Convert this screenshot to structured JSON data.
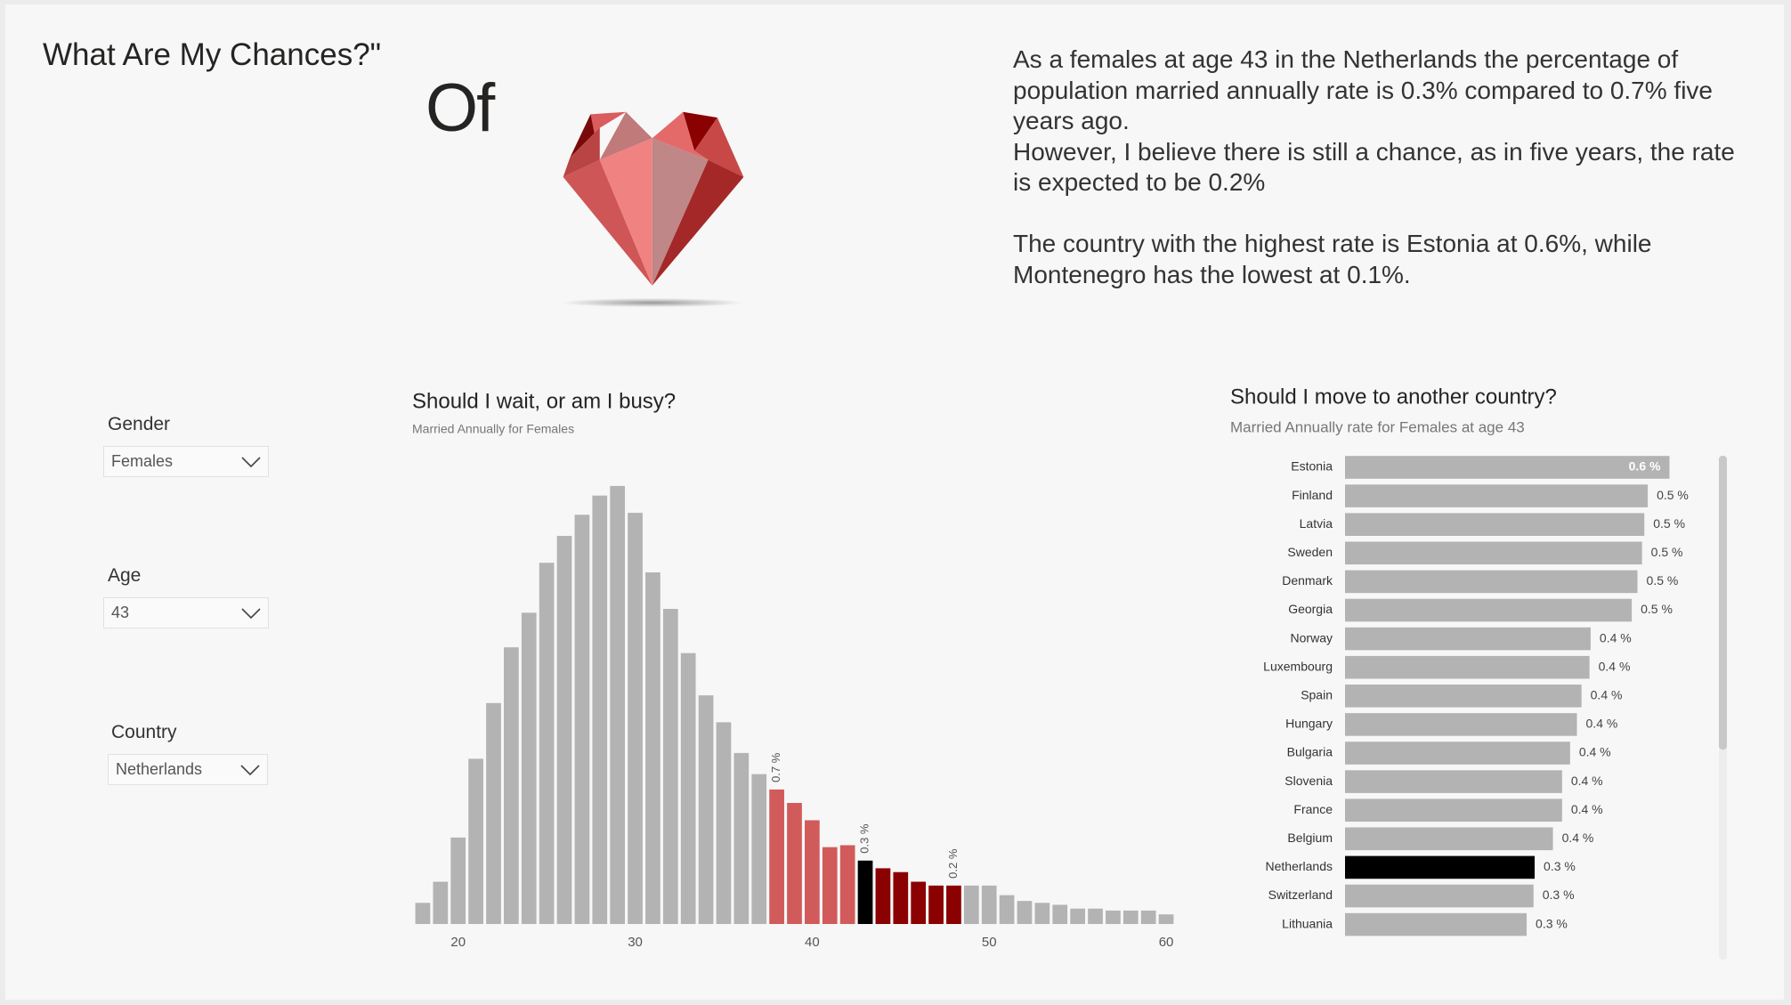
{
  "header": {
    "title": "What Are My Chances?\"",
    "of": "Of"
  },
  "summary": {
    "paragraphs": [
      "As a females at age 43 in the Netherlands the percentage of population married annually rate is 0.3% compared to 0.7% five years ago.",
      "However, I believe there is still a chance, as in five years, the rate is expected to be 0.2%",
      "The country with the highest rate is Estonia at 0.6%, while Montenegro has the lowest at 0.1%."
    ]
  },
  "filters": [
    {
      "label": "Gender",
      "value": "Females"
    },
    {
      "label": "Age",
      "value": "43"
    },
    {
      "label": "Country",
      "value": "Netherlands"
    }
  ],
  "chart_data": [
    {
      "type": "bar",
      "title": "Should I wait, or am I busy?",
      "subtitle": "Married Annually for Females",
      "x": [
        18,
        19,
        20,
        21,
        22,
        23,
        24,
        25,
        26,
        27,
        28,
        29,
        30,
        31,
        32,
        33,
        34,
        35,
        36,
        37,
        38,
        39,
        40,
        41,
        42,
        43,
        44,
        45,
        46,
        47,
        48,
        49,
        50,
        51,
        52,
        53,
        54,
        55,
        56,
        57,
        58,
        59,
        60
      ],
      "values": [
        0.11,
        0.22,
        0.45,
        0.86,
        1.15,
        1.44,
        1.62,
        1.88,
        2.02,
        2.13,
        2.23,
        2.28,
        2.14,
        1.83,
        1.64,
        1.41,
        1.19,
        1.05,
        0.89,
        0.78,
        0.7,
        0.63,
        0.54,
        0.4,
        0.41,
        0.33,
        0.29,
        0.27,
        0.22,
        0.2,
        0.2,
        0.2,
        0.2,
        0.15,
        0.12,
        0.11,
        0.1,
        0.08,
        0.08,
        0.07,
        0.07,
        0.07,
        0.05
      ],
      "value_labels": [
        null,
        null,
        null,
        null,
        null,
        null,
        null,
        null,
        null,
        null,
        null,
        null,
        null,
        null,
        null,
        null,
        null,
        null,
        null,
        null,
        "0.7 %",
        null,
        null,
        null,
        null,
        "0.3 %",
        null,
        null,
        null,
        null,
        "0.2 %",
        null,
        null,
        null,
        null,
        null,
        null,
        null,
        null,
        null,
        null,
        null,
        null
      ],
      "colors": [
        "#b3b3b3",
        "#b3b3b3",
        "#b3b3b3",
        "#b3b3b3",
        "#b3b3b3",
        "#b3b3b3",
        "#b3b3b3",
        "#b3b3b3",
        "#b3b3b3",
        "#b3b3b3",
        "#b3b3b3",
        "#b3b3b3",
        "#b3b3b3",
        "#b3b3b3",
        "#b3b3b3",
        "#b3b3b3",
        "#b3b3b3",
        "#b3b3b3",
        "#b3b3b3",
        "#b3b3b3",
        "#d15b5b",
        "#d15b5b",
        "#d15b5b",
        "#d15b5b",
        "#d15b5b",
        "#000000",
        "#8b0000",
        "#8b0000",
        "#8b0000",
        "#8b0000",
        "#8b0000",
        "#b3b3b3",
        "#b3b3b3",
        "#b3b3b3",
        "#b3b3b3",
        "#b3b3b3",
        "#b3b3b3",
        "#b3b3b3",
        "#b3b3b3",
        "#b3b3b3",
        "#b3b3b3",
        "#b3b3b3",
        "#b3b3b3"
      ],
      "xlim": [
        17.5,
        60.5
      ],
      "xticks": [
        20,
        30,
        40,
        50,
        60
      ],
      "ylim": [
        0,
        2.4
      ]
    },
    {
      "type": "hbar",
      "title": "Should I move to another country?",
      "subtitle": "Married Annually rate for Females at age 43",
      "categories": [
        "Estonia",
        "Finland",
        "Latvia",
        "Sweden",
        "Denmark",
        "Georgia",
        "Norway",
        "Luxembourg",
        "Spain",
        "Hungary",
        "Bulgaria",
        "Slovenia",
        "France",
        "Belgium",
        "Netherlands",
        "Switzerland",
        "Lithuania"
      ],
      "values": [
        0.568,
        0.53,
        0.524,
        0.52,
        0.512,
        0.502,
        0.43,
        0.428,
        0.414,
        0.406,
        0.394,
        0.38,
        0.38,
        0.364,
        0.332,
        0.33,
        0.318
      ],
      "value_labels": [
        "0.6 %",
        "0.5 %",
        "0.5 %",
        "0.5 %",
        "0.5 %",
        "0.5 %",
        "0.4 %",
        "0.4 %",
        "0.4 %",
        "0.4 %",
        "0.4 %",
        "0.4 %",
        "0.4 %",
        "0.4 %",
        "0.3 %",
        "0.3 %",
        "0.3 %"
      ],
      "colors": [
        "#b3b3b3",
        "#b3b3b3",
        "#b3b3b3",
        "#b3b3b3",
        "#b3b3b3",
        "#b3b3b3",
        "#b3b3b3",
        "#b3b3b3",
        "#b3b3b3",
        "#b3b3b3",
        "#b3b3b3",
        "#b3b3b3",
        "#b3b3b3",
        "#b3b3b3",
        "#000000",
        "#b3b3b3",
        "#b3b3b3"
      ],
      "xlim": [
        0,
        0.6
      ]
    }
  ]
}
